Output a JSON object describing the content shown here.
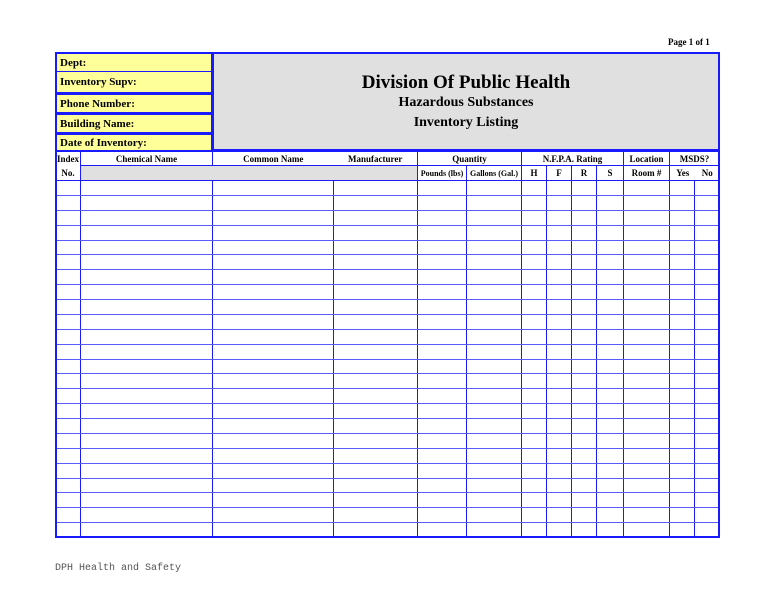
{
  "page_label": "Page 1 of  1",
  "fields": {
    "dept": "Dept:",
    "supervisor": "Inventory  Supv:",
    "phone": "Phone Number:",
    "building": "Building Name:",
    "date": "Date of Inventory:"
  },
  "title": {
    "main": "Division Of Public Health",
    "sub1": "Hazardous Substances",
    "sub2": "Inventory Listing"
  },
  "columns": {
    "index": "Index",
    "index_no": "No.",
    "chemical": "Chemical Name",
    "common": "Common Name",
    "manufacturer": "Manufacturer",
    "quantity": "Quantity",
    "pounds": "Pounds (lbs)",
    "gallons": "Gallons (Gal.)",
    "nfpa": "N.F.P.A. Rating",
    "h": "H",
    "f": "F",
    "r": "R",
    "s": "S",
    "location": "Location",
    "room": "Room #",
    "msds": "MSDS?",
    "yes": "Yes",
    "no": "No"
  },
  "row_count": 24,
  "colors": {
    "grid": "#1a1aff",
    "field_bg": "#ffff99",
    "header_bg": "#e0e0e0"
  },
  "footer": "DPH Health and Safety"
}
